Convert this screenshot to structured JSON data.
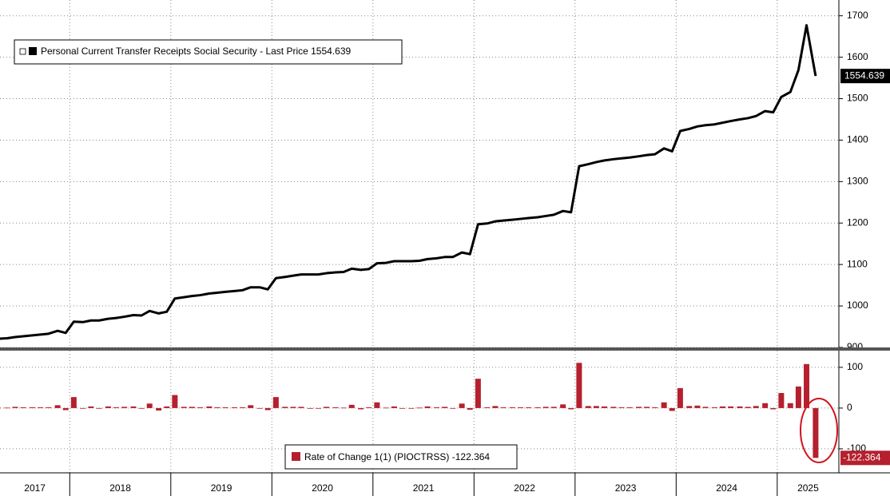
{
  "chart_data": [
    {
      "type": "line",
      "x": [
        2017.29,
        2017.38,
        2017.46,
        2017.54,
        2017.63,
        2017.71,
        2017.79,
        2017.88,
        2017.96,
        2018.04,
        2018.13,
        2018.21,
        2018.29,
        2018.38,
        2018.46,
        2018.54,
        2018.63,
        2018.71,
        2018.79,
        2018.88,
        2018.96,
        2019.04,
        2019.13,
        2019.21,
        2019.29,
        2019.38,
        2019.46,
        2019.54,
        2019.63,
        2019.71,
        2019.79,
        2019.88,
        2019.96,
        2020.04,
        2020.13,
        2020.21,
        2020.29,
        2020.38,
        2020.46,
        2020.54,
        2020.63,
        2020.71,
        2020.79,
        2020.88,
        2020.96,
        2021.04,
        2021.13,
        2021.21,
        2021.29,
        2021.38,
        2021.46,
        2021.54,
        2021.63,
        2021.71,
        2021.79,
        2021.88,
        2021.96,
        2022.04,
        2022.13,
        2022.21,
        2022.29,
        2022.38,
        2022.46,
        2022.54,
        2022.63,
        2022.71,
        2022.79,
        2022.88,
        2022.96,
        2023.04,
        2023.13,
        2023.21,
        2023.29,
        2023.38,
        2023.46,
        2023.54,
        2023.63,
        2023.71,
        2023.79,
        2023.88,
        2023.96,
        2024.04,
        2024.13,
        2024.21,
        2024.29,
        2024.38,
        2024.46,
        2024.54,
        2024.63,
        2024.71,
        2024.79,
        2024.88,
        2024.96,
        2025.04,
        2025.13,
        2025.21,
        2025.29,
        2025.38
      ],
      "series": [
        {
          "name": "Personal Current Transfer Receipts Social Security - Last Price 1554.639",
          "color": "#000000",
          "values": [
            921,
            922,
            925,
            927,
            929,
            931,
            933,
            940,
            935,
            962,
            961,
            965,
            965,
            969,
            971,
            974,
            978,
            977,
            988,
            982,
            986,
            1018,
            1021,
            1024,
            1026,
            1030,
            1032,
            1034,
            1036,
            1038,
            1045,
            1045,
            1040,
            1067,
            1070,
            1073,
            1076,
            1076,
            1076,
            1079,
            1081,
            1082,
            1090,
            1087,
            1089,
            1103,
            1104,
            1108,
            1108,
            1108,
            1109,
            1113,
            1115,
            1118,
            1118,
            1129,
            1125,
            1197,
            1199,
            1204,
            1206,
            1208,
            1210,
            1212,
            1214,
            1217,
            1220,
            1229,
            1226,
            1337,
            1342,
            1347,
            1351,
            1354,
            1356,
            1358,
            1361,
            1364,
            1366,
            1380,
            1373,
            1422,
            1427,
            1433,
            1436,
            1438,
            1442,
            1446,
            1450,
            1453,
            1458,
            1470,
            1467,
            1504,
            1516,
            1569,
            1677,
            1554.639
          ]
        }
      ],
      "xlim": [
        2017.31,
        2025.61
      ],
      "xticks": [
        2017,
        2018,
        2019,
        2020,
        2021,
        2022,
        2023,
        2024,
        2025
      ],
      "ylim": [
        898,
        1738
      ],
      "yticks": [
        900,
        1000,
        1100,
        1200,
        1300,
        1400,
        1500,
        1600,
        1700
      ],
      "grid": true
    },
    {
      "type": "bar",
      "x": [
        2017.29,
        2017.38,
        2017.46,
        2017.54,
        2017.63,
        2017.71,
        2017.79,
        2017.88,
        2017.96,
        2018.04,
        2018.13,
        2018.21,
        2018.29,
        2018.38,
        2018.46,
        2018.54,
        2018.63,
        2018.71,
        2018.79,
        2018.88,
        2018.96,
        2019.04,
        2019.13,
        2019.21,
        2019.29,
        2019.38,
        2019.46,
        2019.54,
        2019.63,
        2019.71,
        2019.79,
        2019.88,
        2019.96,
        2020.04,
        2020.13,
        2020.21,
        2020.29,
        2020.38,
        2020.46,
        2020.54,
        2020.63,
        2020.71,
        2020.79,
        2020.88,
        2020.96,
        2021.04,
        2021.13,
        2021.21,
        2021.29,
        2021.38,
        2021.46,
        2021.54,
        2021.63,
        2021.71,
        2021.79,
        2021.88,
        2021.96,
        2022.04,
        2022.13,
        2022.21,
        2022.29,
        2022.38,
        2022.46,
        2022.54,
        2022.63,
        2022.71,
        2022.79,
        2022.88,
        2022.96,
        2023.04,
        2023.13,
        2023.21,
        2023.29,
        2023.38,
        2023.46,
        2023.54,
        2023.63,
        2023.71,
        2023.79,
        2023.88,
        2023.96,
        2024.04,
        2024.13,
        2024.21,
        2024.29,
        2024.38,
        2024.46,
        2024.54,
        2024.63,
        2024.71,
        2024.79,
        2024.88,
        2024.96,
        2025.04,
        2025.13,
        2025.21,
        2025.29,
        2025.38
      ],
      "series": [
        {
          "name": "Rate of Change 1(1) (PIOCTRSS) -122.364",
          "color": "#b5202e",
          "values": [
            1,
            1,
            3,
            2,
            2,
            2,
            2,
            7,
            -5,
            27,
            -1,
            4,
            0,
            4,
            2,
            3,
            4,
            -1,
            11,
            -6,
            4,
            32,
            3,
            3,
            2,
            4,
            2,
            2,
            2,
            2,
            7,
            0,
            -5,
            27,
            3,
            3,
            3,
            0,
            0,
            3,
            2,
            1,
            8,
            -3,
            2,
            14,
            1,
            4,
            0,
            0,
            1,
            4,
            2,
            3,
            0,
            11,
            -4,
            72,
            2,
            5,
            2,
            2,
            2,
            2,
            2,
            3,
            3,
            9,
            -3,
            111,
            5,
            5,
            4,
            3,
            2,
            2,
            3,
            3,
            2,
            14,
            -7,
            49,
            5,
            6,
            3,
            2,
            4,
            4,
            4,
            3,
            5,
            12,
            -3,
            37,
            12,
            53,
            108,
            -122.364
          ]
        }
      ],
      "xlim": [
        2017.31,
        2025.61
      ],
      "xticks": [
        2017,
        2018,
        2019,
        2020,
        2021,
        2022,
        2023,
        2024,
        2025
      ],
      "ylim": [
        -159,
        141
      ],
      "yticks": [
        -100,
        0,
        100
      ],
      "grid": true
    }
  ]
}
